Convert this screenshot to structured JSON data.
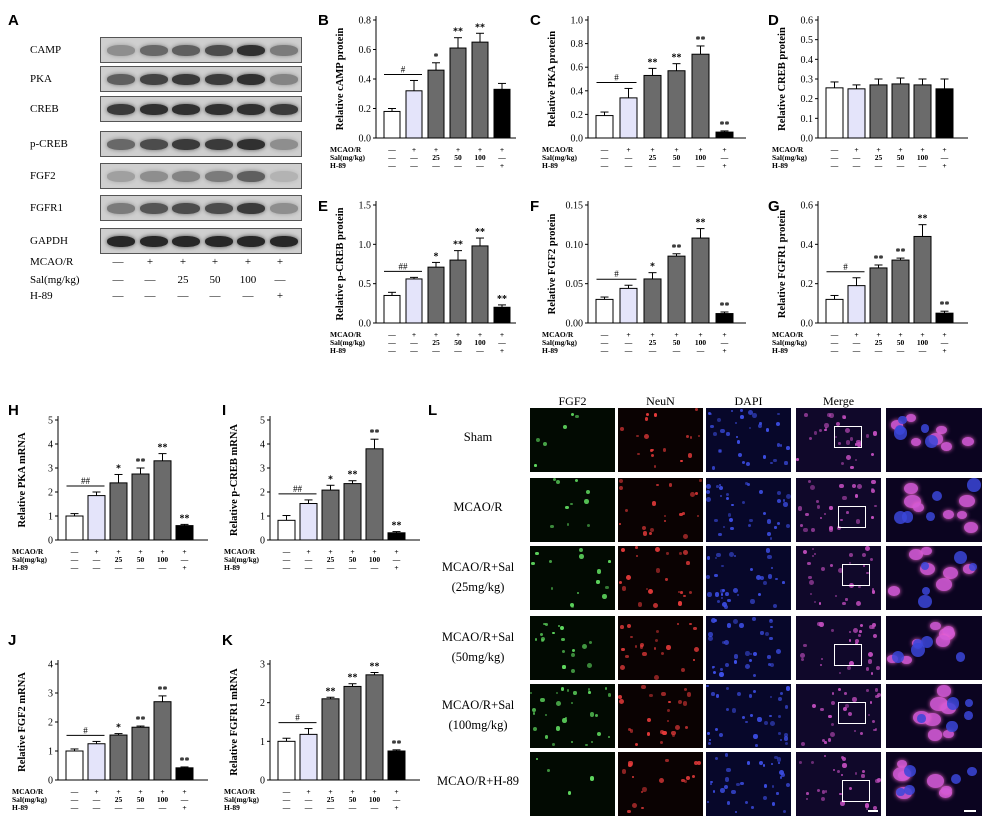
{
  "panels": {
    "A": "A",
    "B": "B",
    "C": "C",
    "D": "D",
    "E": "E",
    "F": "F",
    "G": "G",
    "H": "H",
    "I": "I",
    "J": "J",
    "K": "K",
    "L": "L"
  },
  "western_blot": {
    "bands": [
      "CAMP",
      "PKA",
      "CREB",
      "p-CREB",
      "FGF2",
      "FGFR1",
      "GAPDH"
    ],
    "conditions": [
      {
        "label": "MCAO/R",
        "values": [
          "—",
          "+",
          "+",
          "+",
          "+",
          "+"
        ]
      },
      {
        "label": "Sal(mg/kg)",
        "values": [
          "—",
          "—",
          "25",
          "50",
          "100",
          "—"
        ]
      },
      {
        "label": "H-89",
        "values": [
          "—",
          "—",
          "—",
          "—",
          "—",
          "+"
        ]
      }
    ]
  },
  "conditions_small": [
    {
      "label": "MCAO/R",
      "values": [
        "—",
        "+",
        "+",
        "+",
        "+",
        "+"
      ]
    },
    {
      "label": "Sal(mg/kg)",
      "values": [
        "—",
        "—",
        "25",
        "50",
        "100",
        "—"
      ]
    },
    {
      "label": "H-89",
      "values": [
        "—",
        "—",
        "—",
        "—",
        "—",
        "+"
      ]
    }
  ],
  "colors": [
    "#ffffff",
    "#e4e4fa",
    "#6b6b6b",
    "#6b6b6b",
    "#6b6b6b",
    "#000000"
  ],
  "chart_data": [
    {
      "panel": "B",
      "type": "bar",
      "ylabel": "Relative cAMP protein",
      "ylim": [
        0,
        0.8
      ],
      "yticks": [
        0,
        0.2,
        0.4,
        0.6,
        0.8
      ],
      "tick_labels": [
        "0.0",
        "0.2",
        "0.4",
        "0.6",
        "0.8"
      ],
      "values": [
        0.18,
        0.32,
        0.46,
        0.61,
        0.65,
        0.33
      ],
      "errors": [
        0.02,
        0.07,
        0.05,
        0.07,
        0.06,
        0.04
      ],
      "marks": [
        "",
        "",
        "*",
        "**",
        "**",
        ""
      ],
      "hash": "#"
    },
    {
      "panel": "C",
      "type": "bar",
      "ylabel": "Relative PKA protein",
      "ylim": [
        0,
        1.0
      ],
      "yticks": [
        0,
        0.2,
        0.4,
        0.6,
        0.8,
        1.0
      ],
      "tick_labels": [
        "0.0",
        "0.2",
        "0.4",
        "0.6",
        "0.8",
        "1.0"
      ],
      "values": [
        0.19,
        0.34,
        0.53,
        0.57,
        0.71,
        0.05
      ],
      "errors": [
        0.03,
        0.08,
        0.06,
        0.06,
        0.07,
        0.01
      ],
      "marks": [
        "",
        "",
        "**",
        "**",
        "**",
        "**"
      ],
      "hash": "#"
    },
    {
      "panel": "D",
      "type": "bar",
      "ylabel": "Relative CREB protein",
      "ylim": [
        0,
        0.6
      ],
      "yticks": [
        0,
        0.1,
        0.2,
        0.3,
        0.4,
        0.5,
        0.6
      ],
      "tick_labels": [
        "0.0",
        "0.1",
        "0.2",
        "0.3",
        "0.4",
        "0.5",
        "0.6"
      ],
      "values": [
        0.255,
        0.25,
        0.27,
        0.275,
        0.27,
        0.25
      ],
      "errors": [
        0.03,
        0.02,
        0.03,
        0.03,
        0.03,
        0.05
      ],
      "marks": [
        "",
        "",
        "",
        "",
        "",
        ""
      ],
      "hash": ""
    },
    {
      "panel": "E",
      "type": "bar",
      "ylabel": "Relative p-CREB protein",
      "ylim": [
        0,
        1.5
      ],
      "yticks": [
        0,
        0.5,
        1.0,
        1.5
      ],
      "tick_labels": [
        "0.0",
        "0.5",
        "1.0",
        "1.5"
      ],
      "values": [
        0.35,
        0.56,
        0.71,
        0.8,
        0.98,
        0.2
      ],
      "errors": [
        0.04,
        0.02,
        0.06,
        0.12,
        0.1,
        0.03
      ],
      "marks": [
        "",
        "",
        "*",
        "**",
        "**",
        "**"
      ],
      "hash": "##"
    },
    {
      "panel": "F",
      "type": "bar",
      "ylabel": "Relative FGF2 protein",
      "ylim": [
        0,
        0.15
      ],
      "yticks": [
        0,
        0.05,
        0.1,
        0.15
      ],
      "tick_labels": [
        "0.00",
        "0.05",
        "0.10",
        "0.15"
      ],
      "values": [
        0.03,
        0.044,
        0.056,
        0.085,
        0.108,
        0.012
      ],
      "errors": [
        0.003,
        0.004,
        0.008,
        0.003,
        0.012,
        0.002
      ],
      "marks": [
        "",
        "",
        "*",
        "**",
        "**",
        "**"
      ],
      "hash": "#"
    },
    {
      "panel": "G",
      "type": "bar",
      "ylabel": "Relative FGFR1 protein",
      "ylim": [
        0,
        0.6
      ],
      "yticks": [
        0,
        0.2,
        0.4,
        0.6
      ],
      "tick_labels": [
        "0.0",
        "0.2",
        "0.4",
        "0.6"
      ],
      "values": [
        0.12,
        0.19,
        0.28,
        0.32,
        0.44,
        0.05
      ],
      "errors": [
        0.02,
        0.04,
        0.015,
        0.01,
        0.06,
        0.01
      ],
      "marks": [
        "",
        "",
        "**",
        "**",
        "**",
        "**"
      ],
      "hash": "#"
    },
    {
      "panel": "H",
      "type": "bar",
      "ylabel": "Relative PKA mRNA",
      "ylim": [
        0,
        5
      ],
      "yticks": [
        0,
        1,
        2,
        3,
        4,
        5
      ],
      "tick_labels": [
        "0",
        "1",
        "2",
        "3",
        "4",
        "5"
      ],
      "values": [
        1.0,
        1.85,
        2.38,
        2.75,
        3.3,
        0.6
      ],
      "errors": [
        0.1,
        0.15,
        0.35,
        0.25,
        0.3,
        0.05
      ],
      "marks": [
        "",
        "",
        "*",
        "**",
        "**",
        "**"
      ],
      "hash": "##"
    },
    {
      "panel": "I",
      "type": "bar",
      "ylabel": "Relative p-CREB mRNA",
      "ylim": [
        0,
        5
      ],
      "yticks": [
        0,
        1,
        2,
        3,
        4,
        5
      ],
      "tick_labels": [
        "0",
        "1",
        "2",
        "3",
        "4",
        "5"
      ],
      "values": [
        0.82,
        1.52,
        2.08,
        2.35,
        3.8,
        0.3
      ],
      "errors": [
        0.2,
        0.15,
        0.2,
        0.12,
        0.4,
        0.05
      ],
      "marks": [
        "",
        "",
        "*",
        "**",
        "**",
        "**"
      ],
      "hash": "##"
    },
    {
      "panel": "J",
      "type": "bar",
      "ylabel": "Relative FGF2 mRNA",
      "ylim": [
        0,
        4
      ],
      "yticks": [
        0,
        1,
        2,
        3,
        4
      ],
      "tick_labels": [
        "0",
        "1",
        "2",
        "3",
        "4"
      ],
      "values": [
        1.0,
        1.25,
        1.55,
        1.82,
        2.7,
        0.42
      ],
      "errors": [
        0.07,
        0.08,
        0.05,
        0.04,
        0.2,
        0.03
      ],
      "marks": [
        "",
        "",
        "*",
        "**",
        "**",
        "**"
      ],
      "hash": "#"
    },
    {
      "panel": "K",
      "type": "bar",
      "ylabel": "Relative FGFR1 mRNA",
      "ylim": [
        0,
        3
      ],
      "yticks": [
        0,
        1,
        2,
        3
      ],
      "tick_labels": [
        "0",
        "1",
        "2",
        "3"
      ],
      "values": [
        1.0,
        1.18,
        2.1,
        2.42,
        2.72,
        0.75
      ],
      "errors": [
        0.08,
        0.15,
        0.04,
        0.07,
        0.06,
        0.03
      ],
      "marks": [
        "",
        "",
        "**",
        "**",
        "**",
        "**"
      ],
      "hash": "#"
    }
  ],
  "immuno": {
    "columns": [
      "FGF2",
      "NeuN",
      "DAPI",
      "Merge"
    ],
    "rows": [
      {
        "l1": "Sham",
        "l2": ""
      },
      {
        "l1": "MCAO/R",
        "l2": ""
      },
      {
        "l1": "MCAO/R+Sal",
        "l2": "(25mg/kg)"
      },
      {
        "l1": "MCAO/R+Sal",
        "l2": "(50mg/kg)"
      },
      {
        "l1": "MCAO/R+Sal",
        "l2": "(100mg/kg)"
      },
      {
        "l1": "MCAO/R+H-89",
        "l2": ""
      }
    ]
  }
}
